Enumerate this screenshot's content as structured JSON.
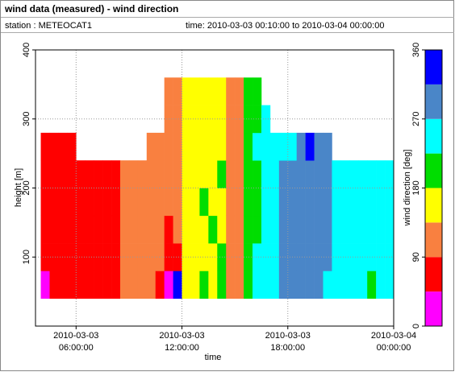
{
  "header": {
    "title": "wind data (measured) - wind direction",
    "station": "station : METEOCAT1",
    "time": "time: 2010-03-03 00:10:00 to 2010-03-04 00:00:00"
  },
  "chart_data": {
    "type": "heatmap",
    "x_label": "time",
    "y_label": "height [m]",
    "colorbar_label": "wind direction [deg]",
    "xlim": [
      3.7,
      24
    ],
    "ylim": [
      0,
      400
    ],
    "xticks": [
      {
        "value": 6,
        "label": "2010-03-03 06:00:00"
      },
      {
        "value": 12,
        "label": "2010-03-03 12:00:00"
      },
      {
        "value": 18,
        "label": "2010-03-03 18:00:00"
      },
      {
        "value": 24,
        "label": "2010-03-04 00:00:00"
      }
    ],
    "yticks": [
      100,
      200,
      300,
      400
    ],
    "grid": true,
    "clim": [
      0,
      360
    ],
    "cticks": [
      0,
      90,
      180,
      270,
      360
    ],
    "colors": [
      "#ff00ff",
      "#ff0000",
      "#f98040",
      "#ffff00",
      "#00dd00",
      "#00ffff",
      "#4a86c8",
      "#0000ff"
    ],
    "x": [
      4.0,
      4.5,
      5.0,
      5.5,
      6.0,
      6.5,
      7.0,
      7.5,
      8.0,
      8.5,
      9.0,
      9.5,
      10.0,
      10.5,
      11.0,
      11.5,
      12.0,
      12.5,
      13.0,
      13.5,
      14.0,
      14.5,
      15.0,
      15.5,
      16.0,
      16.5,
      17.0,
      17.5,
      18.0,
      18.5,
      19.0,
      19.5,
      20.0,
      20.5,
      21.0,
      21.5,
      22.0,
      22.5,
      23.0,
      23.5
    ],
    "y": [
      40,
      80,
      120,
      160,
      200,
      240,
      280,
      320,
      360
    ],
    "values": [
      [
        20,
        70,
        70,
        70,
        70,
        70,
        null,
        null
      ],
      [
        70,
        70,
        70,
        70,
        70,
        70,
        null,
        null
      ],
      [
        70,
        70,
        70,
        70,
        70,
        70,
        null,
        null
      ],
      [
        70,
        70,
        70,
        70,
        70,
        70,
        null,
        null
      ],
      [
        70,
        70,
        70,
        70,
        70,
        null,
        null,
        null
      ],
      [
        70,
        70,
        70,
        70,
        70,
        null,
        null,
        null
      ],
      [
        70,
        70,
        70,
        70,
        70,
        null,
        null,
        null
      ],
      [
        70,
        70,
        70,
        70,
        70,
        null,
        null,
        null
      ],
      [
        70,
        70,
        70,
        70,
        70,
        null,
        null,
        null
      ],
      [
        110,
        110,
        110,
        110,
        110,
        null,
        null,
        null
      ],
      [
        110,
        110,
        110,
        110,
        110,
        null,
        null,
        null
      ],
      [
        110,
        110,
        110,
        110,
        110,
        null,
        null,
        null
      ],
      [
        110,
        110,
        110,
        110,
        110,
        110,
        null,
        null
      ],
      [
        70,
        110,
        110,
        110,
        110,
        110,
        null,
        null
      ],
      [
        20,
        70,
        70,
        110,
        110,
        110,
        110,
        110
      ],
      [
        330,
        70,
        110,
        110,
        110,
        110,
        110,
        110
      ],
      [
        160,
        160,
        160,
        160,
        160,
        160,
        160,
        160
      ],
      [
        160,
        160,
        160,
        160,
        160,
        160,
        160,
        160
      ],
      [
        200,
        160,
        160,
        200,
        160,
        160,
        160,
        160
      ],
      [
        160,
        160,
        200,
        160,
        160,
        160,
        160,
        160
      ],
      [
        200,
        200,
        160,
        160,
        200,
        160,
        160,
        160
      ],
      [
        110,
        110,
        110,
        110,
        110,
        110,
        110,
        110
      ],
      [
        110,
        110,
        110,
        110,
        110,
        110,
        110,
        110
      ],
      [
        200,
        200,
        200,
        200,
        200,
        200,
        200,
        200
      ],
      [
        250,
        250,
        200,
        200,
        200,
        250,
        200,
        200
      ],
      [
        250,
        250,
        250,
        250,
        250,
        250,
        250,
        null
      ],
      [
        250,
        250,
        250,
        250,
        250,
        250,
        null,
        null
      ],
      [
        290,
        290,
        290,
        290,
        290,
        250,
        null,
        null
      ],
      [
        290,
        290,
        290,
        290,
        290,
        250,
        null,
        null
      ],
      [
        290,
        290,
        290,
        290,
        290,
        290,
        null,
        null
      ],
      [
        290,
        290,
        290,
        290,
        290,
        330,
        null,
        null
      ],
      [
        290,
        290,
        290,
        290,
        290,
        290,
        null,
        null
      ],
      [
        250,
        290,
        290,
        290,
        290,
        290,
        null,
        null
      ],
      [
        250,
        250,
        250,
        250,
        250,
        null,
        null,
        null
      ],
      [
        250,
        250,
        250,
        250,
        250,
        null,
        null,
        null
      ],
      [
        250,
        250,
        250,
        250,
        250,
        null,
        null,
        null
      ],
      [
        250,
        250,
        250,
        250,
        250,
        null,
        null,
        null
      ],
      [
        200,
        250,
        250,
        250,
        250,
        null,
        null,
        null
      ],
      [
        250,
        250,
        250,
        250,
        250,
        null,
        null,
        null
      ],
      [
        250,
        250,
        250,
        250,
        250,
        null,
        null,
        null
      ]
    ]
  }
}
